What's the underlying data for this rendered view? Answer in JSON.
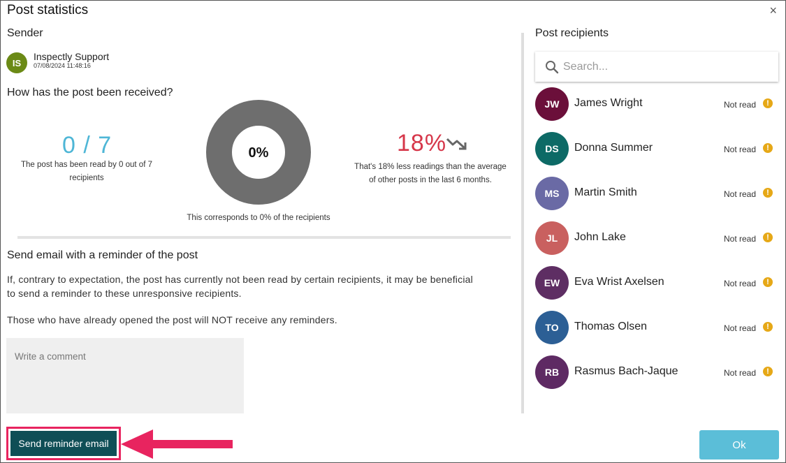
{
  "dialog": {
    "title": "Post statistics",
    "close_glyph": "×"
  },
  "sender": {
    "label": "Sender",
    "initials": "IS",
    "name": "Inspectly Support",
    "timestamp": "07/08/2024 11:48:16",
    "avatar_color": "#6b8a16"
  },
  "reception": {
    "heading": "How has the post been received?",
    "read_count": "0 / 7",
    "read_caption_line1": "The post has been read by 0 out of 7",
    "read_caption_line2": "recipients",
    "donut_percent_label": "0%",
    "donut_read_fraction": 0,
    "donut_caption": "This corresponds to 0% of the recipients",
    "trend_value": "18%",
    "trend_icon": "trending-down-icon",
    "trend_caption_line1": "That's 18% less readings than the average",
    "trend_caption_line2": "of other posts in the last 6 months.",
    "colors": {
      "read_count": "#4eb6d6",
      "trend": "#d6374a",
      "donut": "#6e6e6e"
    }
  },
  "reminder": {
    "heading": "Send email with a reminder of the post",
    "para1_line1": "If, contrary to expectation, the post has currently not been read by certain recipients, it may be beneficial",
    "para1_line2": "to send a reminder to these unresponsive recipients.",
    "para2": "Those who have already opened the post will NOT receive any reminders.",
    "comment_placeholder": "Write a comment"
  },
  "recipients": {
    "heading": "Post recipients",
    "search_placeholder": "Search...",
    "items": [
      {
        "initials": "JW",
        "name": "James Wright",
        "status": "Not read",
        "color": "#6b0f3a"
      },
      {
        "initials": "DS",
        "name": "Donna Summer",
        "status": "Not read",
        "color": "#0d6a66"
      },
      {
        "initials": "MS",
        "name": "Martin Smith",
        "status": "Not read",
        "color": "#6a6aa5"
      },
      {
        "initials": "JL",
        "name": "John Lake",
        "status": "Not read",
        "color": "#c9605f"
      },
      {
        "initials": "EW",
        "name": "Eva Wrist Axelsen",
        "status": "Not read",
        "color": "#5e2e63"
      },
      {
        "initials": "TO",
        "name": "Thomas Olsen",
        "status": "Not read",
        "color": "#2c5f95"
      },
      {
        "initials": "RB",
        "name": "Rasmus Bach-Jaque",
        "status": "Not read",
        "color": "#5e2a63"
      }
    ],
    "status_icon_glyph": "!"
  },
  "footer": {
    "send_reminder_label": "Send reminder email",
    "ok_label": "Ok"
  }
}
